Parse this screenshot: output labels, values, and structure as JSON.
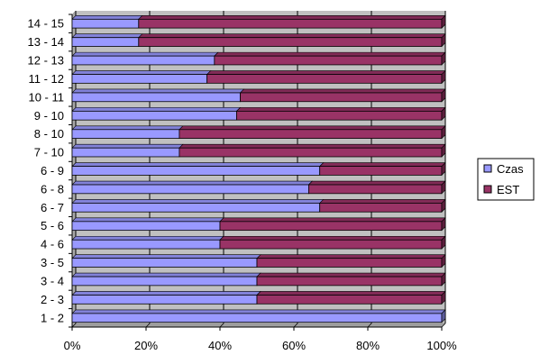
{
  "chart_data": {
    "type": "bar",
    "orientation": "horizontal",
    "stacked": "percent",
    "categories": [
      "1 - 2",
      "2 - 3",
      "3 - 4",
      "3 - 5",
      "4 - 6",
      "5 - 6",
      "6 - 7",
      "6 - 8",
      "6 - 9",
      "7 - 10",
      "8 - 10",
      "9 - 10",
      "10 - 11",
      "11 - 12",
      "12 - 13",
      "13 - 14",
      "14 - 15"
    ],
    "series": [
      {
        "name": "Czas",
        "color": "#9999ff",
        "values": [
          100,
          50,
          50,
          50,
          40,
          40,
          67,
          64,
          67,
          29,
          29,
          44.5,
          45.5,
          36.5,
          38.5,
          18,
          18
        ]
      },
      {
        "name": "EST",
        "color": "#993366",
        "values": [
          0,
          50,
          50,
          50,
          60,
          60,
          33,
          36,
          33,
          71,
          71,
          55.5,
          54.5,
          63.5,
          61.5,
          82,
          82
        ]
      }
    ],
    "xlim": [
      0,
      100
    ],
    "xticks": [
      "0%",
      "20%",
      "40%",
      "60%",
      "80%",
      "100%"
    ],
    "title": "",
    "xlabel": "",
    "ylabel": "",
    "grid": true,
    "plot_background": "#c0c0c0",
    "legend_position": "right"
  }
}
